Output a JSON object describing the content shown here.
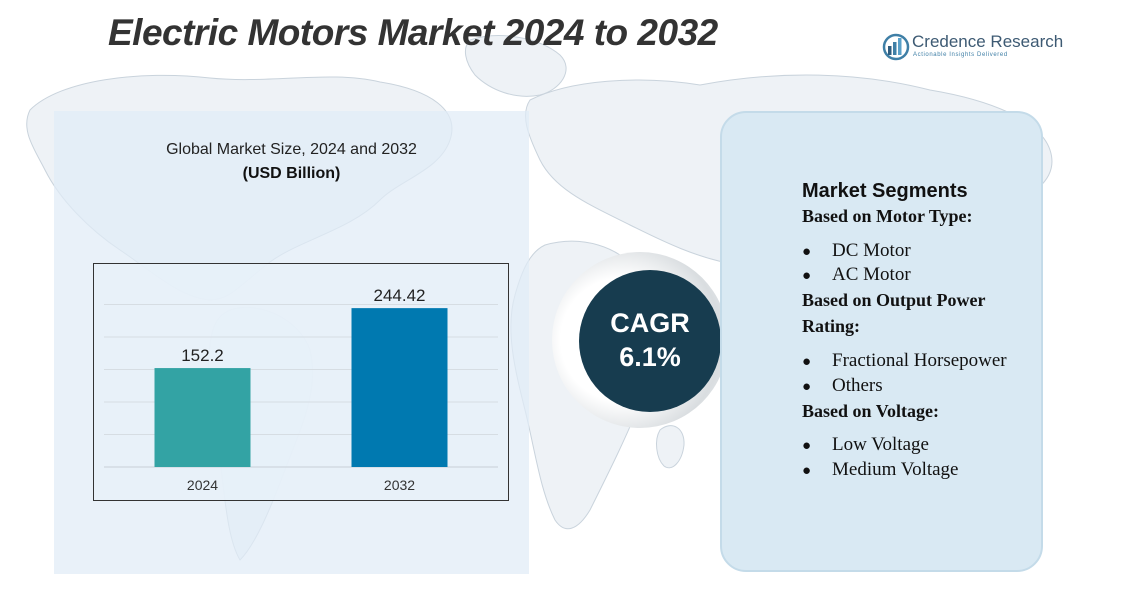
{
  "title": "Electric Motors Market 2024 to 2032",
  "brand": {
    "name": "Credence Research",
    "tagline": "Actionable Insights Delivered",
    "color": "#3d5a73"
  },
  "chart_data": {
    "type": "bar",
    "title": "Global Market Size, 2024 and 2032",
    "subtitle": "(USD Billion)",
    "categories": [
      "2024",
      "2032"
    ],
    "values": [
      152.2,
      244.42
    ],
    "value_labels": [
      "152.2",
      "244.42"
    ],
    "colors": [
      "#33a3a4",
      "#0079b0"
    ],
    "ylim": [
      0,
      300
    ],
    "grid": true
  },
  "cagr": {
    "label": "CAGR",
    "value": "6.1%"
  },
  "segments": {
    "title": "Market Segments",
    "groups": [
      {
        "heading": "Based on Motor Type:",
        "items": [
          "DC Motor",
          "AC Motor"
        ]
      },
      {
        "heading": "Based on Output Power",
        "heading_cont": "Rating:",
        "items": [
          "Fractional Horsepower",
          "Others"
        ]
      },
      {
        "heading": "Based on Voltage:",
        "items": [
          "Low Voltage",
          "Medium Voltage"
        ]
      }
    ]
  }
}
